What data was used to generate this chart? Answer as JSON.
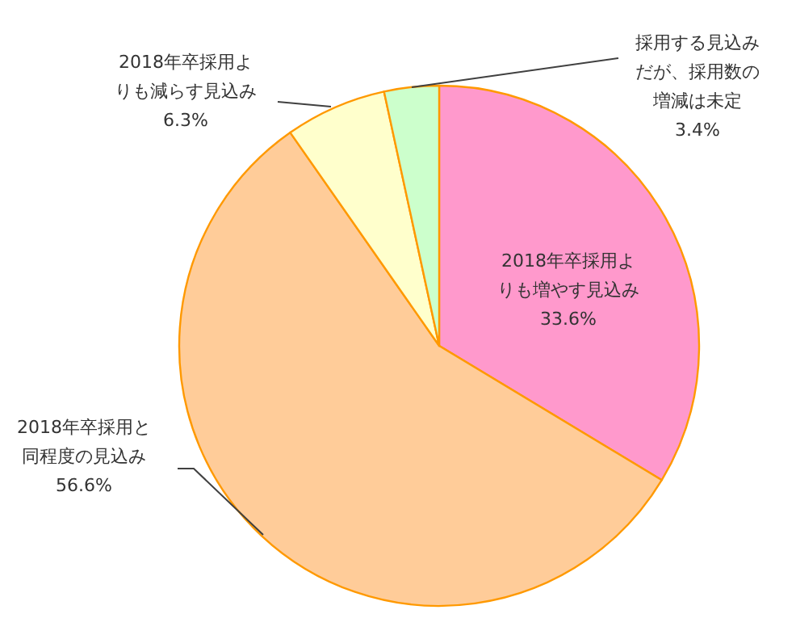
{
  "chart_data": {
    "type": "pie",
    "categories": [
      "2018年卒採用よりも増やす見込み",
      "2018年卒採用と同程度の見込み",
      "2018年卒採用よりも減らす見込み",
      "採用する見込みだが、採用数の増減は未定"
    ],
    "values": [
      33.6,
      56.6,
      6.3,
      3.4
    ],
    "colors": [
      "#ff99cc",
      "#ffcc99",
      "#ffffcc",
      "#ccffcc"
    ],
    "value_labels": [
      "33.6%",
      "56.6%",
      "6.3%",
      "3.4%"
    ]
  }
}
